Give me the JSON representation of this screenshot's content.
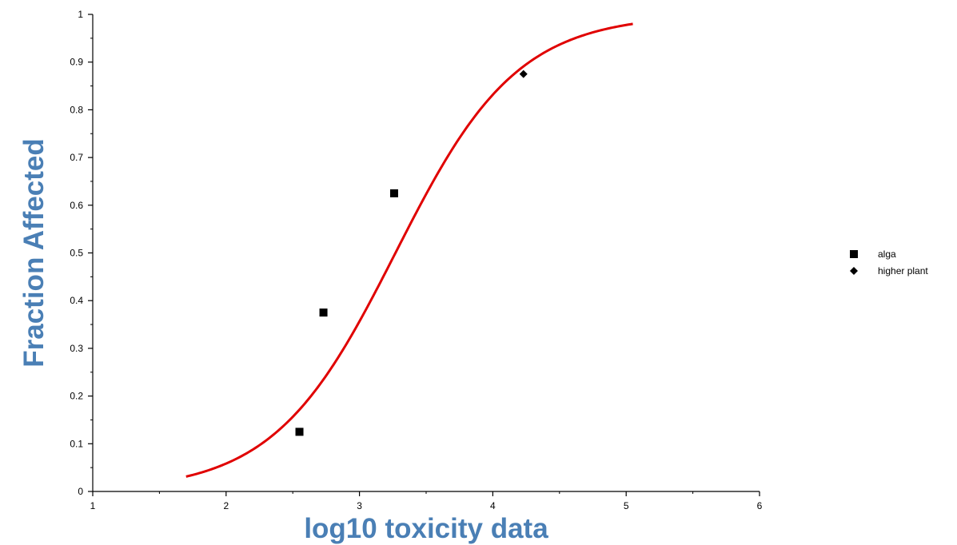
{
  "chart_data": {
    "type": "scatter",
    "title": "",
    "xlabel": "log10 toxicity data",
    "ylabel": "Fraction Affected",
    "xlim": [
      1,
      6
    ],
    "ylim": [
      0,
      1
    ],
    "x_ticks": [
      "1",
      "2",
      "3",
      "4",
      "5",
      "6"
    ],
    "y_ticks": [
      "0",
      "0.1",
      "0.2",
      "0.3",
      "0.4",
      "0.5",
      "0.6",
      "0.7",
      "0.8",
      "0.9",
      "1"
    ],
    "grid": false,
    "legend_position": "right",
    "series": [
      {
        "name": "alga",
        "marker": "square",
        "color": "#000000",
        "points": [
          {
            "x": 2.55,
            "y": 0.125
          },
          {
            "x": 2.73,
            "y": 0.375
          },
          {
            "x": 3.26,
            "y": 0.625
          }
        ]
      },
      {
        "name": "higher plant",
        "marker": "diamond",
        "color": "#000000",
        "points": [
          {
            "x": 4.23,
            "y": 0.875
          }
        ]
      }
    ],
    "fitted_curve": {
      "type": "logistic",
      "color": "#e00000",
      "x_range": [
        1.7,
        5.05
      ],
      "midpoint": 3.27,
      "scale": 0.457
    },
    "axis_title_color": "#4a7fb5"
  }
}
